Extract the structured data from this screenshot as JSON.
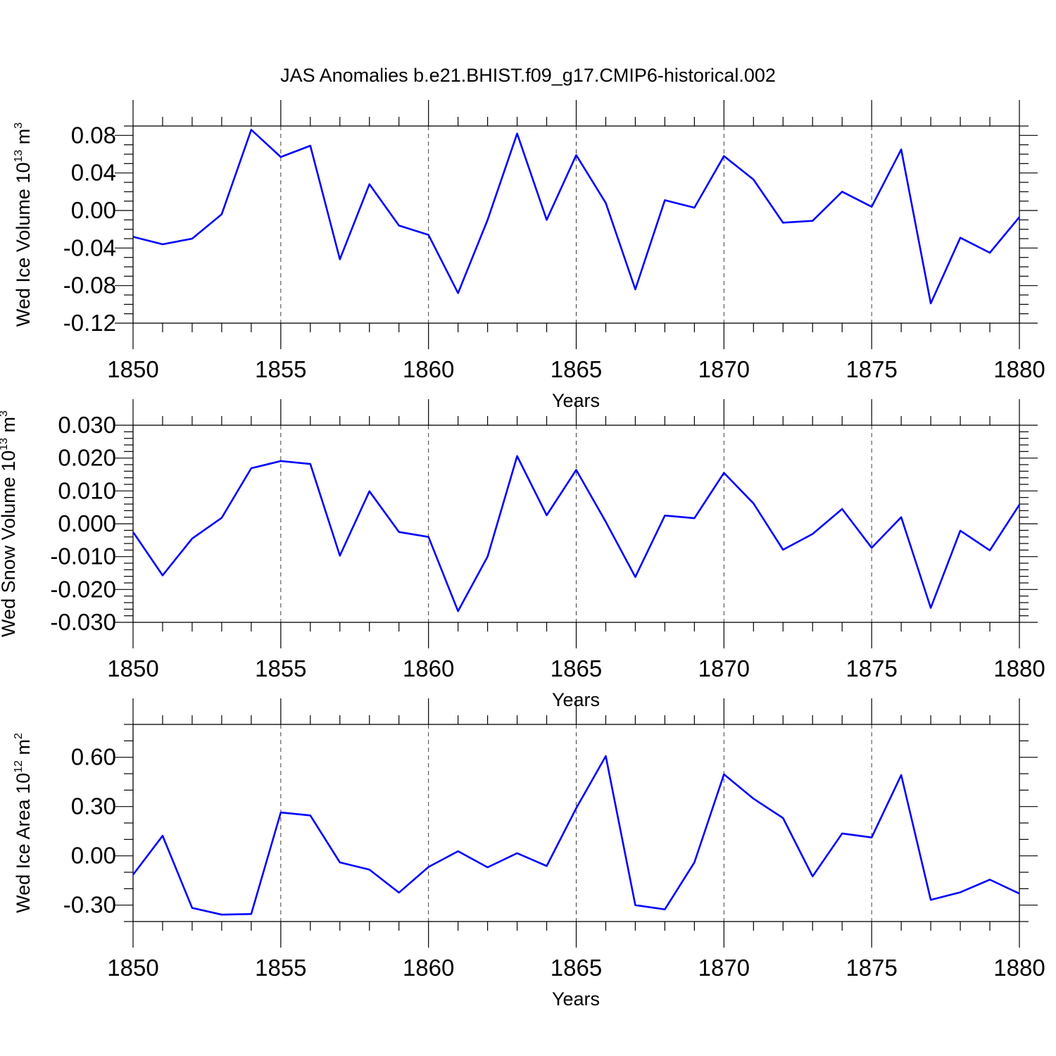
{
  "title": "JAS Anomalies b.e21.BHIST.f09_g17.CMIP6-historical.002",
  "chart_data": [
    {
      "type": "line",
      "ylabel": "Wed Ice Volume 10",
      "ylabel_exp": "13",
      "ylabel_unit": " m",
      "ylabel_unit_exp": "3",
      "xlabel": "Years",
      "xlim": [
        1850,
        1880
      ],
      "ylim": [
        -0.12,
        0.09
      ],
      "xticks": [
        1850,
        1855,
        1860,
        1865,
        1870,
        1875,
        1880
      ],
      "xtick_labels": [
        "1850",
        "1855",
        "1860",
        "1865",
        "1870",
        "1875",
        "1880"
      ],
      "yticks": [
        -0.12,
        -0.08,
        -0.04,
        0.0,
        0.04,
        0.08
      ],
      "ytick_labels": [
        "-0.12",
        "-0.08",
        "-0.04",
        "0.00",
        "0.04",
        "0.08"
      ],
      "yminor": 0.01,
      "series": [
        {
          "name": "Wed Ice Volume",
          "color": "#0000ff",
          "x": [
            1850,
            1851,
            1852,
            1853,
            1854,
            1855,
            1856,
            1857,
            1858,
            1859,
            1860,
            1861,
            1862,
            1863,
            1864,
            1865,
            1866,
            1867,
            1868,
            1869,
            1870,
            1871,
            1872,
            1873,
            1874,
            1875,
            1876,
            1877,
            1878,
            1879,
            1880
          ],
          "values": [
            -0.028,
            -0.036,
            -0.03,
            -0.004,
            0.086,
            0.057,
            0.069,
            -0.052,
            0.028,
            -0.016,
            -0.026,
            -0.088,
            -0.01,
            0.082,
            -0.01,
            0.059,
            0.008,
            -0.084,
            0.011,
            0.003,
            0.058,
            0.033,
            -0.013,
            -0.011,
            0.02,
            0.004,
            0.065,
            -0.099,
            -0.029,
            -0.045,
            -0.007
          ]
        }
      ]
    },
    {
      "type": "line",
      "ylabel": "Wed Snow Volume 10",
      "ylabel_exp": "13",
      "ylabel_unit": " m",
      "ylabel_unit_exp": "3",
      "xlabel": "Years",
      "xlim": [
        1850,
        1880
      ],
      "ylim": [
        -0.03,
        0.03
      ],
      "xticks": [
        1850,
        1855,
        1860,
        1865,
        1870,
        1875,
        1880
      ],
      "xtick_labels": [
        "1850",
        "1855",
        "1860",
        "1865",
        "1870",
        "1875",
        "1880"
      ],
      "yticks": [
        -0.03,
        -0.02,
        -0.01,
        0.0,
        0.01,
        0.02,
        0.03
      ],
      "ytick_labels": [
        "-0.030",
        "-0.020",
        "-0.010",
        "0.000",
        "0.010",
        "0.020",
        "0.030"
      ],
      "yminor": 0.002,
      "series": [
        {
          "name": "Wed Snow Volume",
          "color": "#0000ff",
          "x": [
            1850,
            1851,
            1852,
            1853,
            1854,
            1855,
            1856,
            1857,
            1858,
            1859,
            1860,
            1861,
            1862,
            1863,
            1864,
            1865,
            1866,
            1867,
            1868,
            1869,
            1870,
            1871,
            1872,
            1873,
            1874,
            1875,
            1876,
            1877,
            1878,
            1879,
            1880
          ],
          "values": [
            -0.0025,
            -0.0157,
            -0.0045,
            0.0018,
            0.0169,
            0.0191,
            0.0182,
            -0.0097,
            0.0099,
            -0.0025,
            -0.004,
            -0.0266,
            -0.01,
            0.0206,
            0.0026,
            0.0164,
            0.0006,
            -0.0162,
            0.0025,
            0.0017,
            0.0155,
            0.0062,
            -0.0079,
            -0.0031,
            0.0045,
            -0.0073,
            0.002,
            -0.0256,
            -0.0021,
            -0.0081,
            0.0058
          ]
        }
      ]
    },
    {
      "type": "line",
      "ylabel": "Wed Ice Area 10",
      "ylabel_exp": "12",
      "ylabel_unit": " m",
      "ylabel_unit_exp": "2",
      "xlabel": "Years",
      "xlim": [
        1850,
        1880
      ],
      "ylim": [
        -0.4,
        0.8
      ],
      "xticks": [
        1850,
        1855,
        1860,
        1865,
        1870,
        1875,
        1880
      ],
      "xtick_labels": [
        "1850",
        "1855",
        "1860",
        "1865",
        "1870",
        "1875",
        "1880"
      ],
      "yticks": [
        -0.3,
        0.0,
        0.3,
        0.6
      ],
      "ytick_labels": [
        "-0.30",
        "0.00",
        "0.30",
        "0.60"
      ],
      "yminor": 0.1,
      "series": [
        {
          "name": "Wed Ice Area",
          "color": "#0000ff",
          "x": [
            1850,
            1851,
            1852,
            1853,
            1854,
            1855,
            1856,
            1857,
            1858,
            1859,
            1860,
            1861,
            1862,
            1863,
            1864,
            1865,
            1866,
            1867,
            1868,
            1869,
            1870,
            1871,
            1872,
            1873,
            1874,
            1875,
            1876,
            1877,
            1878,
            1879,
            1880
          ],
          "values": [
            -0.115,
            0.122,
            -0.317,
            -0.358,
            -0.354,
            0.264,
            0.246,
            -0.04,
            -0.084,
            -0.224,
            -0.068,
            0.028,
            -0.07,
            0.016,
            -0.062,
            0.29,
            0.607,
            -0.3,
            -0.326,
            -0.04,
            0.496,
            0.348,
            0.23,
            -0.125,
            0.136,
            0.112,
            0.492,
            -0.268,
            -0.222,
            -0.145,
            -0.23
          ]
        }
      ]
    }
  ]
}
